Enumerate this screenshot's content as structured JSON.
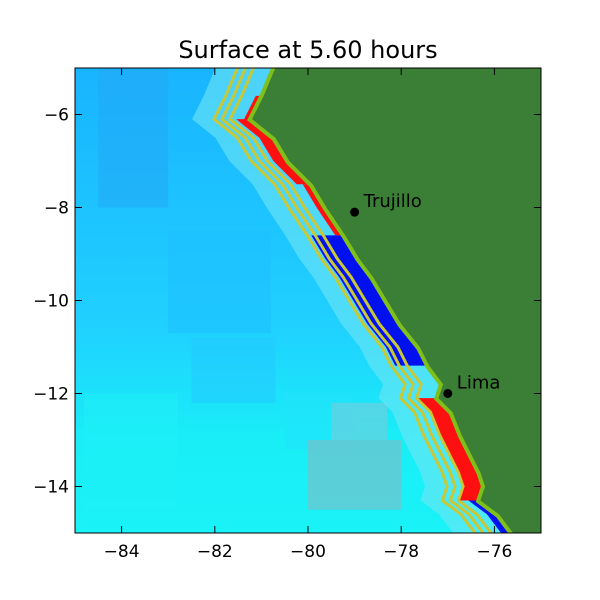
{
  "title": "Surface at 5.60 hours",
  "colors": {
    "land": "#3a7f35",
    "land_edge": "#7fbf1a",
    "ocean_deep": "#19b4ff",
    "ocean_shallow": "#19f2f7",
    "ocean_mid": "#20d4ff",
    "trough": "#0010ef",
    "crest": "#ff1010",
    "neutral_wave": "#8fa8b8",
    "contour": "#c8c837"
  },
  "chart_data": {
    "type": "map",
    "xlim": [
      -85,
      -75
    ],
    "ylim": [
      -15,
      -5
    ],
    "xticks": [
      -84,
      -82,
      -80,
      -78,
      -76
    ],
    "yticks": [
      -6,
      -8,
      -10,
      -12,
      -14
    ],
    "xtick_labels": [
      "−84",
      "−82",
      "−80",
      "−78",
      "−76"
    ],
    "ytick_labels": [
      "−6",
      "−8",
      "−10",
      "−12",
      "−14"
    ],
    "grid": false,
    "coastline": [
      [
        -80.7,
        -5.0
      ],
      [
        -80.95,
        -5.6
      ],
      [
        -81.2,
        -6.1
      ],
      [
        -80.7,
        -6.5
      ],
      [
        -80.4,
        -7.0
      ],
      [
        -79.9,
        -7.5
      ],
      [
        -79.6,
        -8.0
      ],
      [
        -79.2,
        -8.6
      ],
      [
        -78.9,
        -9.1
      ],
      [
        -78.6,
        -9.5
      ],
      [
        -78.3,
        -10.0
      ],
      [
        -78.0,
        -10.5
      ],
      [
        -77.6,
        -11.0
      ],
      [
        -77.4,
        -11.4
      ],
      [
        -77.1,
        -11.8
      ],
      [
        -77.2,
        -12.1
      ],
      [
        -76.9,
        -12.4
      ],
      [
        -76.7,
        -12.9
      ],
      [
        -76.5,
        -13.3
      ],
      [
        -76.3,
        -13.7
      ],
      [
        -76.2,
        -14.0
      ],
      [
        -76.3,
        -14.3
      ],
      [
        -75.9,
        -14.6
      ],
      [
        -75.6,
        -15.0
      ]
    ],
    "cities": [
      {
        "name": "Trujillo",
        "lon": -79.0,
        "lat": -8.1
      },
      {
        "name": "Lima",
        "lon": -77.0,
        "lat": -12.0
      }
    ]
  }
}
